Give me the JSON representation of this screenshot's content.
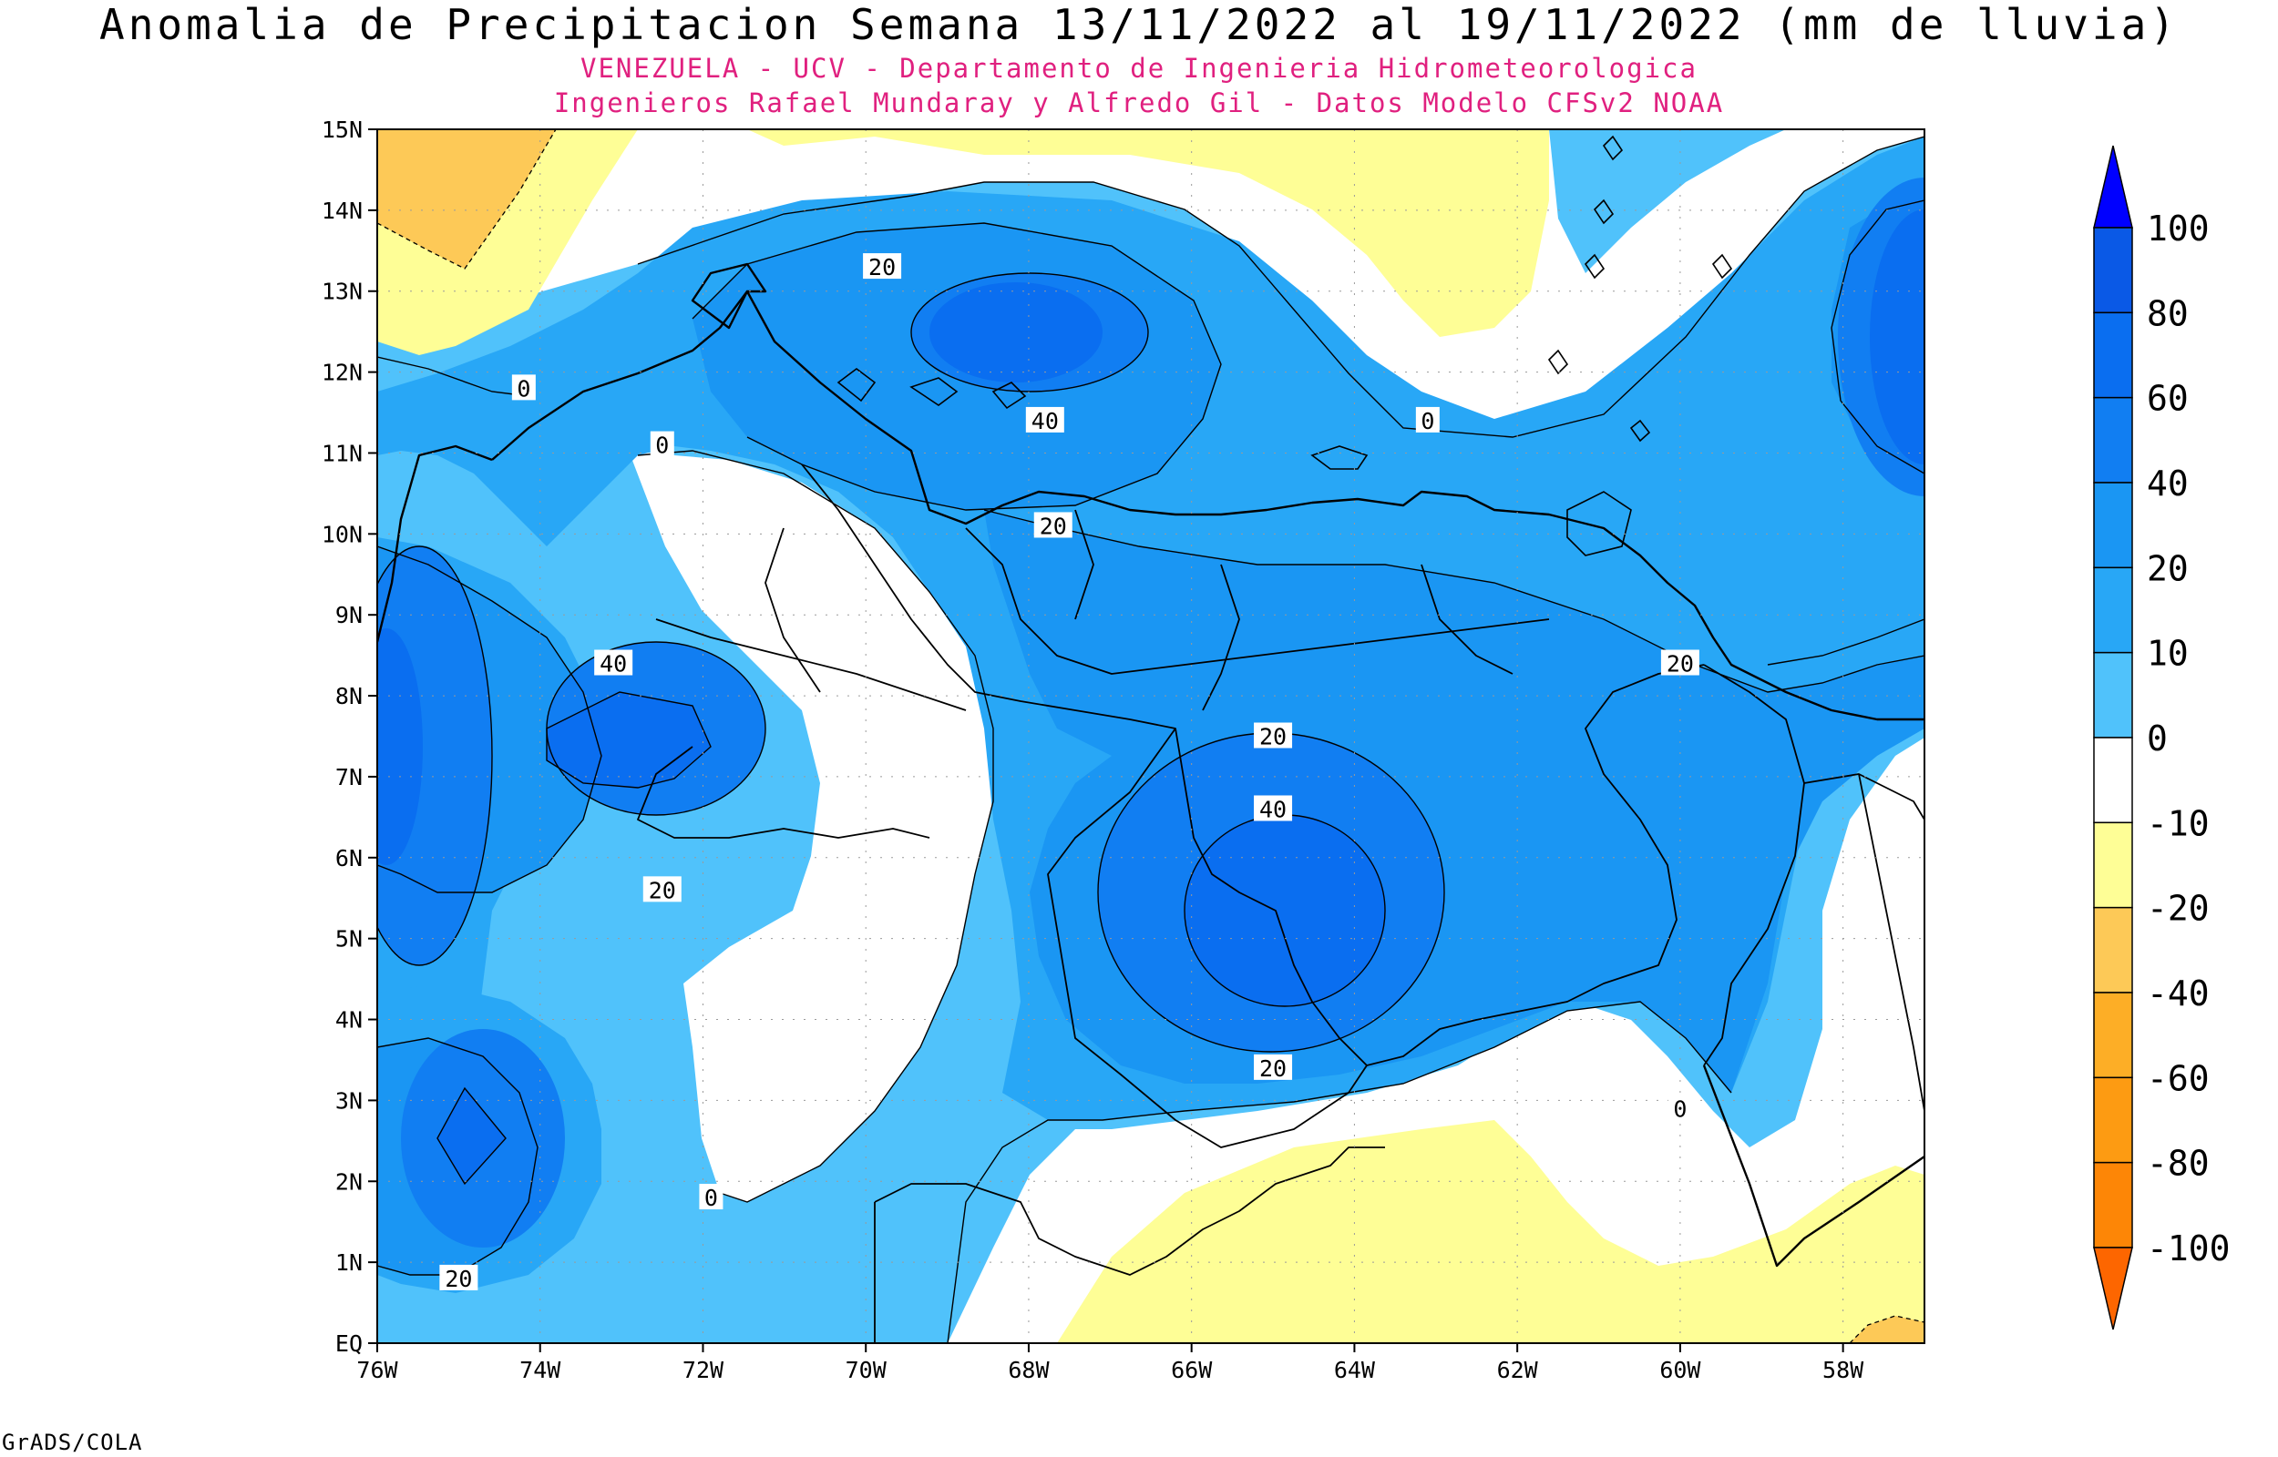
{
  "title": "Anomalia de Precipitacion Semana 13/11/2022 al 19/11/2022 (mm de lluvia)",
  "subtitle_line1": "VENEZUELA - UCV - Departamento de Ingenieria Hidrometeorologica",
  "subtitle_line2": "Ingenieros Rafael Mundaray y Alfredo Gil - Datos Modelo CFSv2 NOAA",
  "footer": "GrADS/COLA",
  "chart_data": {
    "type": "heatmap",
    "variable": "precipitation anomaly (mm)",
    "x_ticks": [
      "76W",
      "74W",
      "72W",
      "70W",
      "68W",
      "66W",
      "64W",
      "62W",
      "60W",
      "58W"
    ],
    "y_ticks": [
      "EQ",
      "1N",
      "2N",
      "3N",
      "4N",
      "5N",
      "6N",
      "7N",
      "8N",
      "9N",
      "10N",
      "11N",
      "12N",
      "13N",
      "14N",
      "15N"
    ],
    "xlim": [
      -76,
      -57
    ],
    "ylim": [
      0,
      15
    ],
    "grid": true,
    "colorbar": {
      "levels": [
        "100",
        "80",
        "60",
        "40",
        "20",
        "10",
        "0",
        "-10",
        "-20",
        "-40",
        "-60",
        "-80",
        "-100"
      ],
      "colors": [
        "#0000ff",
        "#0a59e6",
        "#0a6ef0",
        "#117ef2",
        "#1a96f3",
        "#28a7f6",
        "#50c2fb",
        "#ffffff",
        "#fefe96",
        "#fdc957",
        "#fdae26",
        "#fd9b12",
        "#fd8606",
        "#fd6600"
      ]
    },
    "contour_labels": [
      {
        "value": "20",
        "lon": -69.8,
        "lat": 13.3
      },
      {
        "value": "40",
        "lon": -67.8,
        "lat": 11.4
      },
      {
        "value": "20",
        "lon": -67.7,
        "lat": 10.1
      },
      {
        "value": "0",
        "lon": -74.2,
        "lat": 11.8
      },
      {
        "value": "0",
        "lon": -72.5,
        "lat": 11.1
      },
      {
        "value": "0",
        "lon": -63.1,
        "lat": 11.4
      },
      {
        "value": "40",
        "lon": -73.1,
        "lat": 8.4
      },
      {
        "value": "20",
        "lon": -72.5,
        "lat": 5.6
      },
      {
        "value": "20",
        "lon": -60.0,
        "lat": 8.4
      },
      {
        "value": "20",
        "lon": -65.0,
        "lat": 7.5
      },
      {
        "value": "40",
        "lon": -65.0,
        "lat": 6.6
      },
      {
        "value": "20",
        "lon": -65.0,
        "lat": 3.4
      },
      {
        "value": "0",
        "lon": -60.0,
        "lat": 2.9
      },
      {
        "value": "0",
        "lon": -71.9,
        "lat": 1.8
      },
      {
        "value": "20",
        "lon": -75.0,
        "lat": 0.8
      }
    ]
  }
}
